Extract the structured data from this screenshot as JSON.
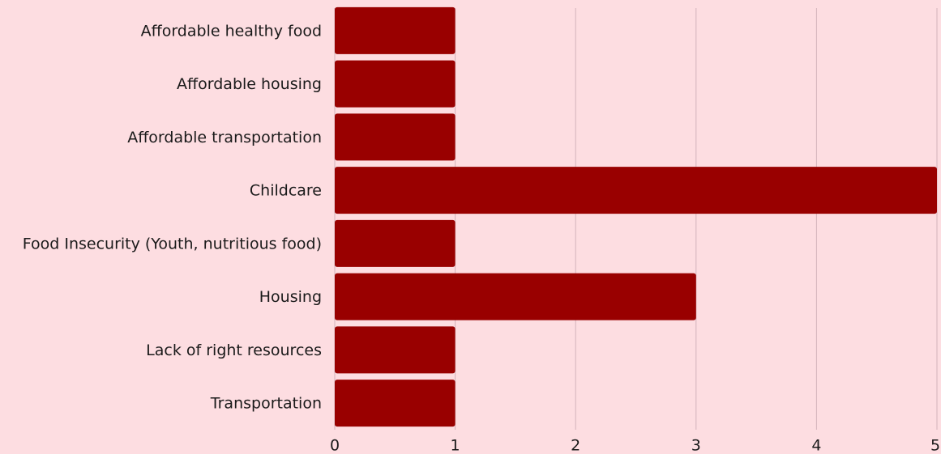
{
  "chart_data": {
    "type": "bar",
    "orientation": "horizontal",
    "categories": [
      "Affordable healthy food",
      "Affordable housing",
      "Affordable transportation",
      "Childcare",
      "Food Insecurity (Youth, nutritious food)",
      "Housing",
      "Lack of right resources",
      "Transportation"
    ],
    "values": [
      1,
      1,
      1,
      5,
      1,
      3,
      1,
      1
    ],
    "color": "#990000",
    "xlim": [
      0,
      5
    ],
    "xticks": [
      0,
      1,
      2,
      3,
      4,
      5
    ],
    "grid": true
  }
}
